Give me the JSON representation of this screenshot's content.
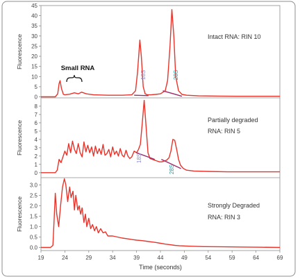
{
  "colors": {
    "trace": "#e8332a",
    "marker": "#9a2a6a",
    "label_18s": "#8a8ad0",
    "label_28s": "#1e9aa0",
    "frame": "#8c8c8c",
    "axis_text": "#444444"
  },
  "chart_data": {
    "type": "line",
    "xlabel": "Time (seconds)",
    "xlim": [
      19,
      69
    ],
    "xticks": [
      "19",
      "24",
      "29",
      "34",
      "39",
      "44",
      "49",
      "54",
      "59",
      "64",
      "69"
    ],
    "grid": false,
    "panels": [
      {
        "ylabel": "Fluorescence",
        "ylim": [
          -0.5,
          45
        ],
        "yticks": [
          "0",
          "5",
          "10",
          "15",
          "20",
          "25",
          "30",
          "35",
          "40",
          "45"
        ],
        "annotation_lines": [
          "Intact RNA: RIN 10"
        ],
        "peak_labels": [
          "18S",
          "28S"
        ],
        "small_rna_label": "Small RNA",
        "series": [
          {
            "x": [
              19,
              22,
              22.5,
              22.8,
              23,
              23.3,
              23.7,
              24,
              25,
              26,
              26.8,
              27.5,
              28.5,
              30,
              33,
              36,
              38,
              38.8,
              39.2,
              39.7,
              40,
              40.4,
              40.8,
              41.3,
              42,
              43,
              44,
              45,
              45.5,
              46,
              46.4,
              46.8,
              47.2,
              47.8,
              48.5,
              49.5,
              52,
              56,
              60,
              64,
              67,
              69
            ],
            "y": [
              0,
              0,
              1.5,
              6.5,
              8,
              4,
              1.2,
              1,
              1.3,
              2,
              1.5,
              2.3,
              1.5,
              1,
              0.8,
              0.8,
              1,
              3,
              12,
              28,
              20,
              5,
              1.5,
              1,
              1,
              1.2,
              1.5,
              3,
              8,
              25,
              43,
              30,
              10,
              3,
              1.2,
              0.8,
              0.5,
              0.4,
              0.3,
              0.3,
              0.3,
              0.3
            ]
          }
        ],
        "baselines": [
          {
            "x": [
              38.5,
              41.5
            ],
            "y": [
              0.8,
              0.6
            ]
          },
          {
            "x": [
              44.5,
              48.5
            ],
            "y": [
              3.0,
              0.3
            ]
          }
        ]
      },
      {
        "ylabel": "Fluorescence",
        "ylim": [
          -0.6,
          9
        ],
        "yticks": [
          "0",
          "1",
          "2",
          "3",
          "4",
          "5",
          "6",
          "7",
          "8"
        ],
        "annotation_lines": [
          "Partially degraded",
          "RNA: RIN 5"
        ],
        "peak_labels": [
          "18S",
          "28S"
        ],
        "series": [
          {
            "x": [
              19,
              22,
              22.4,
              22.8,
              23.2,
              23.6,
              24,
              24.4,
              24.8,
              25.2,
              25.6,
              26,
              26.4,
              26.8,
              27.2,
              27.6,
              28,
              28.4,
              28.8,
              29.2,
              29.6,
              30,
              30.4,
              30.8,
              31.2,
              31.6,
              32,
              32.4,
              32.8,
              33.2,
              33.6,
              34,
              34.4,
              34.8,
              35.2,
              35.6,
              36,
              36.4,
              36.8,
              37.2,
              37.6,
              38,
              38.5,
              39,
              39.4,
              39.8,
              40.2,
              40.6,
              41,
              41.4,
              41.8,
              42.3,
              42.8,
              43.3,
              43.8,
              44.3,
              44.8,
              45.3,
              45.8,
              46.2,
              46.6,
              47,
              47.4,
              47.8,
              48.2,
              48.8,
              49.5,
              51,
              54,
              58,
              62,
              66,
              69
            ],
            "y": [
              0,
              0,
              0.3,
              1.6,
              1.2,
              1.9,
              2.6,
              2.1,
              3.5,
              2.4,
              3.8,
              2.8,
              2.3,
              3.5,
              2.4,
              1.9,
              3.7,
              2.5,
              3.3,
              2.4,
              3.1,
              2.0,
              3.2,
              2.3,
              2.9,
              2.2,
              3.4,
              2.1,
              2.3,
              2.8,
              1.9,
              3.1,
              2.2,
              2.6,
              2.0,
              2.9,
              2.1,
              1.9,
              2.7,
              2.0,
              1.7,
              1.9,
              2.6,
              2.4,
              2.8,
              3.4,
              6.0,
              8.7,
              5.5,
              2.4,
              1.7,
              1.6,
              1.5,
              1.4,
              1.3,
              1.3,
              1.4,
              1.5,
              1.8,
              2.6,
              4.0,
              3.9,
              2.8,
              1.6,
              0.9,
              0.5,
              0.3,
              0.2,
              0.15,
              0.1,
              0.1,
              0.1,
              0.1
            ]
          }
        ],
        "baselines": [
          {
            "x": [
              39.0,
              42.8
            ],
            "y": [
              2.4,
              1.6
            ]
          },
          {
            "x": [
              44.2,
              48.3
            ],
            "y": [
              1.6,
              0.5
            ]
          }
        ]
      },
      {
        "ylabel": "Fluorescence",
        "ylim": [
          -0.15,
          3.35
        ],
        "yticks": [
          "0.0",
          "0.5",
          "1.0",
          "1.5",
          "2.0",
          "2.5",
          "3.0"
        ],
        "annotation_lines": [
          "Strongly Degraded",
          "RNA: RIN 3"
        ],
        "series": [
          {
            "x": [
              19,
              21,
              21.5,
              21.8,
              22,
              22.3,
              22.7,
              23.1,
              23.5,
              23.9,
              24.2,
              24.6,
              25,
              25.3,
              25.7,
              26,
              26.3,
              26.7,
              27,
              27.3,
              27.6,
              28,
              28.3,
              28.6,
              29,
              29.4,
              29.8,
              30.2,
              30.6,
              31,
              31.5,
              32,
              32.5,
              33,
              34,
              35,
              36,
              37,
              38,
              39,
              40,
              41,
              42,
              43,
              44,
              45,
              46,
              47,
              48,
              50,
              53,
              57,
              61,
              65,
              69
            ],
            "y": [
              0,
              0,
              0.1,
              1.6,
              2.6,
              1.6,
              1.0,
              2.0,
              2.9,
              3.3,
              3.0,
              2.2,
              2.9,
              2.4,
              2.7,
              1.8,
              2.5,
              1.8,
              2.0,
              1.6,
              1.9,
              1.2,
              1.6,
              1.0,
              1.4,
              0.9,
              1.1,
              0.8,
              1.0,
              0.7,
              0.9,
              0.7,
              0.75,
              0.55,
              0.55,
              0.5,
              0.45,
              0.42,
              0.38,
              0.35,
              0.33,
              0.3,
              0.27,
              0.24,
              0.2,
              0.16,
              0.13,
              0.1,
              0.08,
              0.06,
              0.04,
              0.03,
              0.02,
              0.01,
              0.0
            ]
          }
        ],
        "baselines": []
      }
    ]
  }
}
